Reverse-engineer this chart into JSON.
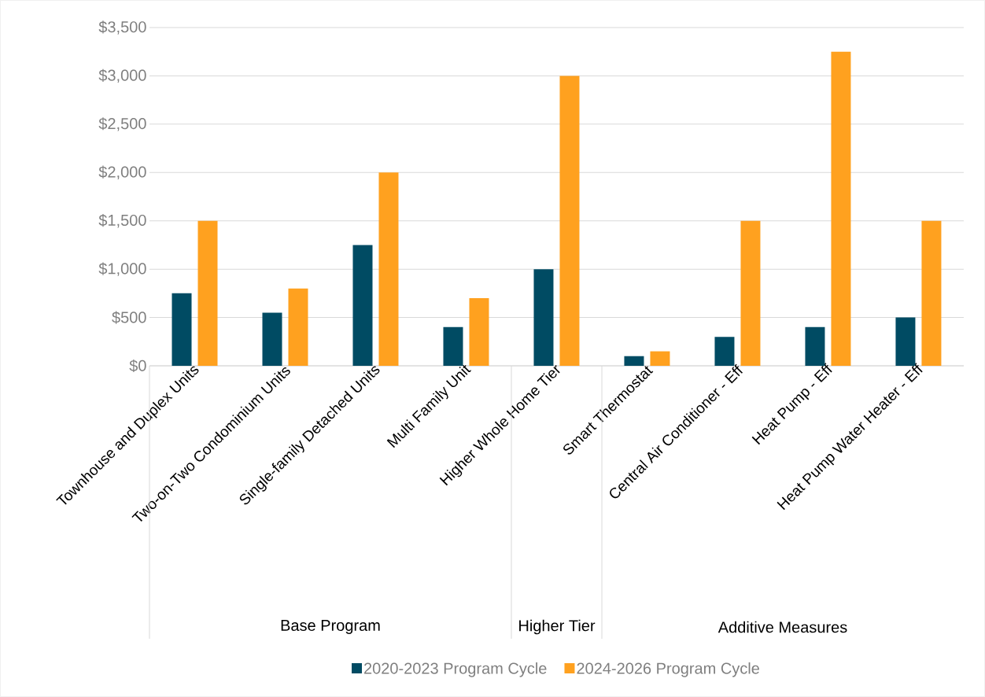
{
  "chart_data": {
    "type": "bar",
    "categories": [
      "Townhouse and Duplex Units",
      "Two-on-Two Condominium Units",
      "Single-family Detached Units",
      "Multi Family Unit",
      "Higher Whole Home Tier",
      "Smart Thermostat",
      "Central Air Conditioner - Eff",
      "Heat Pump - Eff",
      "Heat Pump Water Heater - Eff"
    ],
    "series": [
      {
        "name": "2020-2023 Program Cycle",
        "color": "#004b63",
        "values": [
          750,
          550,
          1250,
          400,
          1000,
          100,
          300,
          400,
          500
        ]
      },
      {
        "name": "2024-2026 Program Cycle",
        "color": "#ffa11f",
        "values": [
          1500,
          800,
          2000,
          700,
          3000,
          150,
          1500,
          3250,
          1500
        ]
      }
    ],
    "ylim": [
      0,
      3500
    ],
    "yticks": [
      {
        "value": 0,
        "label": "$0"
      },
      {
        "value": 500,
        "label": "$500"
      },
      {
        "value": 1000,
        "label": "$1,000"
      },
      {
        "value": 1500,
        "label": "$1,500"
      },
      {
        "value": 2000,
        "label": "$2,000"
      },
      {
        "value": 2500,
        "label": "$2,500"
      },
      {
        "value": 3000,
        "label": "$3,000"
      },
      {
        "value": 3500,
        "label": "$3,500"
      }
    ],
    "annotations": [
      "Base Program",
      "Higher Tier",
      "Additive Measures"
    ],
    "grid": "y",
    "legend": "bottom"
  }
}
